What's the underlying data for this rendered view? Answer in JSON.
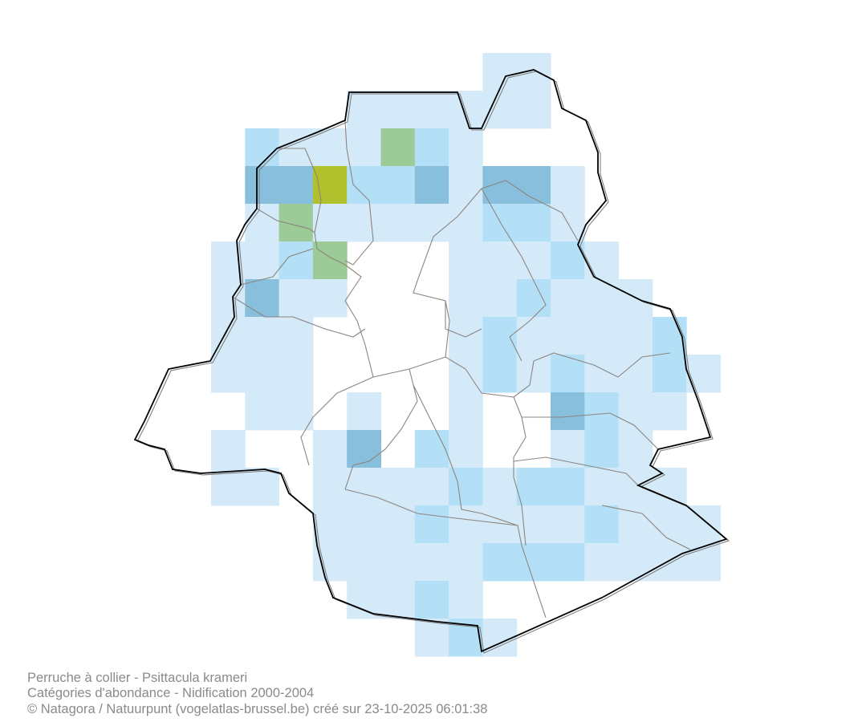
{
  "caption": {
    "species": "Perruche à collier - Psittacula krameri",
    "category": "Catégories d'abondance - Nidification 2000-2004",
    "credit": "© Natagora / Natuurpunt (vogelatlas-brussel.be) créé sur 23-10-2025 06:01:38"
  }
}
